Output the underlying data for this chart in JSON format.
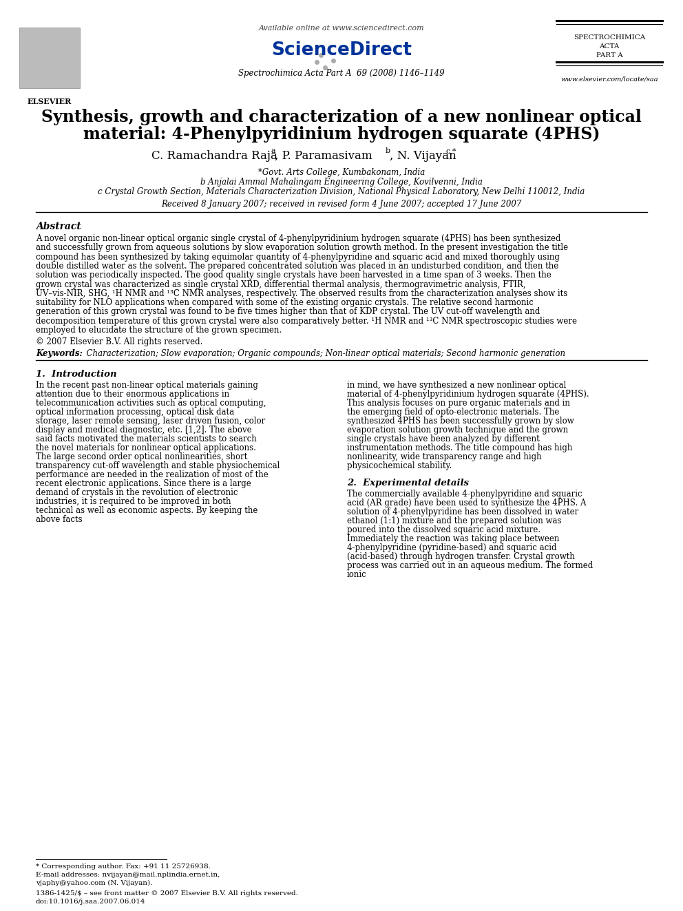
{
  "bg_color": "#ffffff",
  "title_line1": "Synthesis, growth and characterization of a new nonlinear optical",
  "title_line2": "material: 4-Phenylpyridinium hydrogen squarate (4PHS)",
  "affil_a": "*Govt. Arts College, Kumbakonam, India",
  "affil_b": "b Anjalai Ammal Mahalingam Engineering College, Kovilvenni, India",
  "affil_c": "c Crystal Growth Section, Materials Characterization Division, National Physical Laboratory, New Delhi 110012, India",
  "received": "Received 8 January 2007; received in revised form 4 June 2007; accepted 17 June 2007",
  "journal_header": "Spectrochimica Acta Part A  69 (2008) 1146–1149",
  "available_online": "Available online at www.sciencedirect.com",
  "journal_url": "www.elsevier.com/locate/saa",
  "abstract_title": "Abstract",
  "abstract_text": "A novel organic non-linear optical organic single crystal of 4-phenylpyridinium hydrogen squarate (4PHS) has been synthesized and successfully grown from aqueous solutions by slow evaporation solution growth method. In the present investigation the title compound has been synthesized by taking equimolar quantity of 4-phenylpyridine and squaric acid and mixed thoroughly using double distilled water as the solvent. The prepared concentrated solution was placed in an undisturbed condition, and then the solution was periodically inspected. The good quality single crystals have been harvested in a time span of 3 weeks. Then the grown crystal was characterized as single crystal XRD, differential thermal analysis, thermogravimetric analysis, FTIR, UV–vis-NIR, SHG, ¹H NMR and ¹³C NMR analyses, respectively. The observed results from the characterization analyses show its suitability for NLO applications when compared with some of the existing organic crystals. The relative second harmonic generation of this grown crystal was found to be five times higher than that of KDP crystal. The UV cut-off wavelength and decomposition temperature of this grown crystal were also comparatively better. ¹H NMR and ¹³C NMR spectroscopic studies were employed to elucidate the structure of the grown specimen.",
  "copyright": "© 2007 Elsevier B.V. All rights reserved.",
  "keywords_label": "Keywords:",
  "keywords_text": "Characterization; Slow evaporation; Organic compounds; Non-linear optical materials; Second harmonic generation",
  "section1_title": "1.  Introduction",
  "section1_col1": "In the recent past non-linear optical materials gaining attention due to their enormous applications in telecommunication activities such as optical computing, optical information processing, optical disk data storage, laser remote sensing, laser driven fusion, color display and medical diagnostic, etc. [1,2]. The above said facts motivated the materials scientists to search the novel materials for nonlinear optical applications. The large second order optical nonlinearities, short transparency cut-off wavelength and stable physiochemical performance are needed in the realization of most of the recent electronic applications. Since there is a large demand of crystals in the revolution of electronic industries, it is required to be improved in both technical as well as economic aspects. By keeping the above facts",
  "section1_col2": "in mind, we have synthesized a new nonlinear optical material of 4-phenylpyridinium hydrogen squarate (4PHS). This analysis focuses on pure organic materials and in the emerging field of opto-electronic materials. The synthesized 4PHS has been successfully grown by slow evaporation solution growth technique and the grown single crystals have been analyzed by different instrumentation methods. The title compound has high nonlinearity, wide transparency range and high physicochemical stability.",
  "section2_title": "2.  Experimental details",
  "section2_col2": "The commercially available 4-phenylpyridine and squaric acid (AR grade) have been used to synthesize the 4PHS. A solution of 4-phenylpyridine has been dissolved in water ethanol (1:1) mixture and the prepared solution was poured into the dissolved squaric acid mixture. Immediately the reaction was taking place between 4-phenylpyridine (pyridine-based) and squaric acid (acid-based) through hydrogen transfer. Crystal growth process was carried out in an aqueous medium. The formed ionic",
  "footnote1": "* Corresponding author. Fax: +91 11 25726938.",
  "footnote2": "E-mail addresses: nvijayan@mail.nplindia.ernet.in,",
  "footnote3": "vjaphy@yahoo.com (N. Vijayan).",
  "footnote4": "1386-1425/$ – see front matter © 2007 Elsevier B.V. All rights reserved.",
  "footnote5": "doi:10.1016/j.saa.2007.06.014"
}
